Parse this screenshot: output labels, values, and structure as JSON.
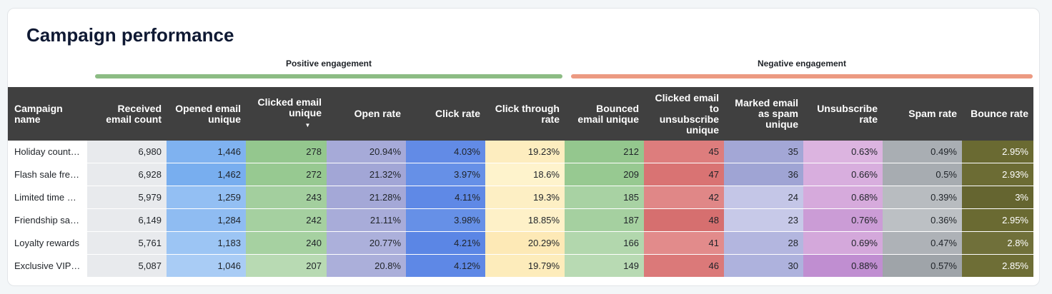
{
  "title": "Campaign performance",
  "groups": {
    "positive": {
      "label": "Positive engagement",
      "color": "#8cbc84"
    },
    "negative": {
      "label": "Negative engagement",
      "color": "#ec9a82"
    }
  },
  "columns": [
    "Campaign name",
    "Received email count",
    "Opened email unique",
    "Clicked email unique",
    "Open rate",
    "Click rate",
    "Click through rate",
    "Bounced email unique",
    "Clicked email to unsubscribe unique",
    "Marked email as spam unique",
    "Unsubscribe rate",
    "Spam rate",
    "Bounce rate"
  ],
  "sort_indicator": "▼",
  "rows": [
    [
      "Holiday count…",
      "6,980",
      "1,446",
      "278",
      "20.94%",
      "4.03%",
      "19.23%",
      "212",
      "45",
      "35",
      "0.63%",
      "0.49%",
      "2.95%"
    ],
    [
      "Flash sale fre…",
      "6,928",
      "1,462",
      "272",
      "21.32%",
      "3.97%",
      "18.6%",
      "209",
      "47",
      "36",
      "0.66%",
      "0.5%",
      "2.93%"
    ],
    [
      "Limited time …",
      "5,979",
      "1,259",
      "243",
      "21.28%",
      "4.11%",
      "19.3%",
      "185",
      "42",
      "24",
      "0.68%",
      "0.39%",
      "3%"
    ],
    [
      "Friendship sa…",
      "6,149",
      "1,284",
      "242",
      "21.11%",
      "3.98%",
      "18.85%",
      "187",
      "48",
      "23",
      "0.76%",
      "0.36%",
      "2.95%"
    ],
    [
      "Loyalty rewards",
      "5,761",
      "1,183",
      "240",
      "20.77%",
      "4.21%",
      "20.29%",
      "166",
      "41",
      "28",
      "0.69%",
      "0.47%",
      "2.8%"
    ],
    [
      "Exclusive VIP …",
      "5,087",
      "1,046",
      "207",
      "20.8%",
      "4.12%",
      "19.79%",
      "149",
      "46",
      "30",
      "0.88%",
      "0.57%",
      "2.85%"
    ]
  ],
  "cell_colors": [
    [
      "#ffffff",
      "#e8eaed",
      "#7fb2f0",
      "#94c78e",
      "#a6aad8",
      "#628be6",
      "#fdedbf",
      "#94c78e",
      "#dd7d7d",
      "#a3a7d6",
      "#dcb4e0",
      "#a9aeb3",
      "#6a6a32"
    ],
    [
      "#ffffff",
      "#e8eaed",
      "#78aeef",
      "#97c991",
      "#a2a6d6",
      "#6690e7",
      "#fef3cc",
      "#97c991",
      "#d97373",
      "#9fa4d4",
      "#d8aede",
      "#a7acb1",
      "#6c6c34"
    ],
    [
      "#ffffff",
      "#e8eaed",
      "#93bff3",
      "#a3cf9e",
      "#a4a8d7",
      "#5f89e6",
      "#fdefc4",
      "#a8d2a3",
      "#e08787",
      "#c4c6e7",
      "#d6aadc",
      "#b8bcc0",
      "#656530"
    ],
    [
      "#ffffff",
      "#e8eaed",
      "#8fbcf2",
      "#a5d0a0",
      "#a8acd9",
      "#6690e7",
      "#fef1c8",
      "#a5d0a0",
      "#d66f6f",
      "#c7c9e8",
      "#cb9cd6",
      "#bcc0c4",
      "#6a6a32"
    ],
    [
      "#ffffff",
      "#e8eaed",
      "#9cc5f4",
      "#a6d1a1",
      "#acb0db",
      "#5b86e5",
      "#fde9b6",
      "#b2d7ad",
      "#e28b8b",
      "#b3b6df",
      "#d4a8db",
      "#aeb2b7",
      "#70703a"
    ],
    [
      "#ffffff",
      "#e8eaed",
      "#a9ccf5",
      "#b8dab3",
      "#abafda",
      "#5e88e6",
      "#fdecbb",
      "#b8dab3",
      "#db7979",
      "#aeb2dd",
      "#c08ed1",
      "#9fa4a9",
      "#6e6e36"
    ]
  ],
  "cell_text_colors": [
    [
      "#1f2328",
      "#1f2328",
      "#1f2328",
      "#1f2328",
      "#1f2328",
      "#1f2328",
      "#1f2328",
      "#1f2328",
      "#1f2328",
      "#1f2328",
      "#1f2328",
      "#1f2328",
      "#ffffff"
    ]
  ]
}
